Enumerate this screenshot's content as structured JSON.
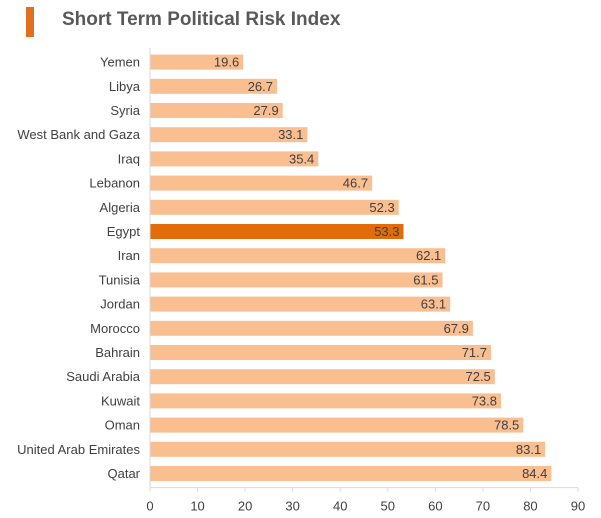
{
  "title": "Short Term Political Risk Index",
  "colors": {
    "accent": "#E07020",
    "bar": "#F9BF91",
    "highlight": "#E36C0A",
    "axis": "#D9D9D9",
    "text": "#404040"
  },
  "chart_data": {
    "type": "bar",
    "orientation": "horizontal",
    "title": "Short Term Political Risk Index",
    "categories": [
      "Yemen",
      "Libya",
      "Syria",
      "West Bank and Gaza",
      "Iraq",
      "Lebanon",
      "Algeria",
      "Egypt",
      "Iran",
      "Tunisia",
      "Jordan",
      "Morocco",
      "Bahrain",
      "Saudi Arabia",
      "Kuwait",
      "Oman",
      "United Arab Emirates",
      "Qatar"
    ],
    "values": [
      19.6,
      26.7,
      27.9,
      33.1,
      35.4,
      46.7,
      52.3,
      53.3,
      62.1,
      61.5,
      63.1,
      67.9,
      71.7,
      72.5,
      73.8,
      78.5,
      83.1,
      84.4
    ],
    "highlight": "Egypt",
    "xlim": [
      0,
      90
    ],
    "xticks": [
      0,
      10,
      20,
      30,
      40,
      50,
      60,
      70,
      80,
      90
    ],
    "grid": false,
    "legend": "none"
  }
}
